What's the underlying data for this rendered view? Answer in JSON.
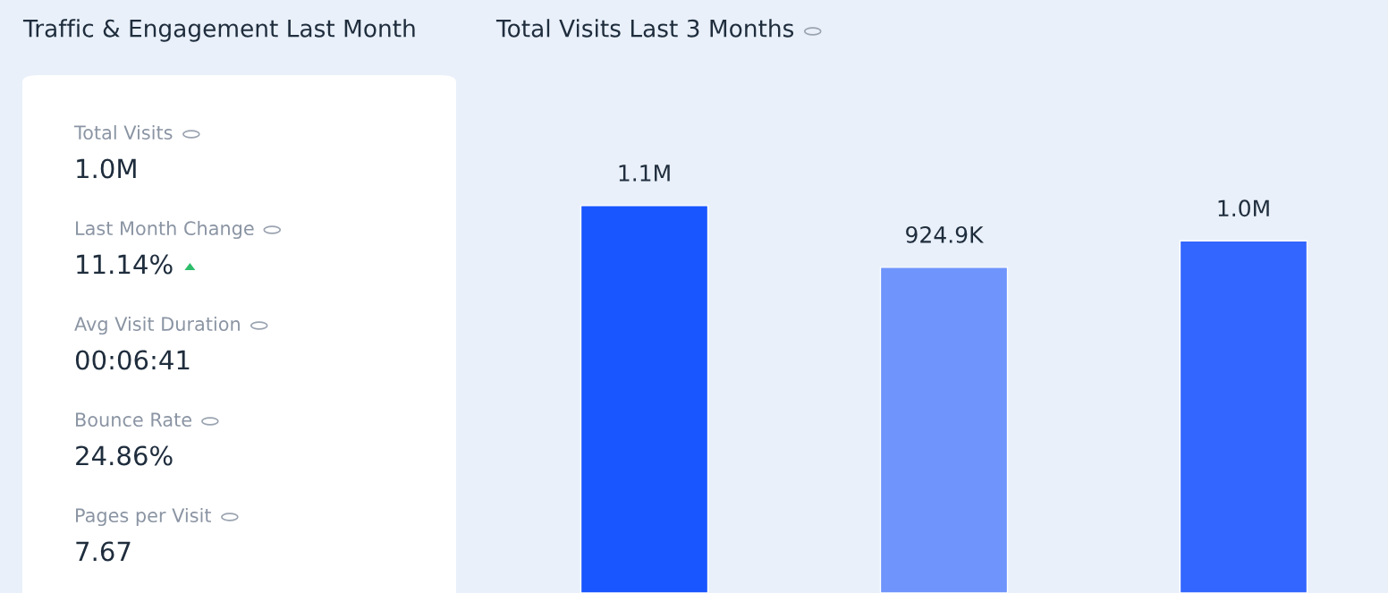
{
  "chart_data": [
    {
      "type": "other",
      "title": "Traffic & Engagement Last Month",
      "annotations": [
        "Total Visits",
        "1.0M",
        "Last Month Change",
        "11.14%",
        "Avg Visit Duration",
        "00:06:41",
        "Bounce Rate",
        "24.86%",
        "Pages per Visit",
        "7.67"
      ]
    },
    {
      "type": "bar",
      "title": "Total Visits Last 3 Months",
      "categories": [
        null,
        null,
        null
      ],
      "values": [
        1100000,
        924900,
        1000000
      ],
      "colors": [
        "#1a56ff",
        "#6f94fb",
        "#3366ff"
      ],
      "value_labels": [
        "1.1M",
        "924.9K",
        "1.0M"
      ]
    }
  ]
}
